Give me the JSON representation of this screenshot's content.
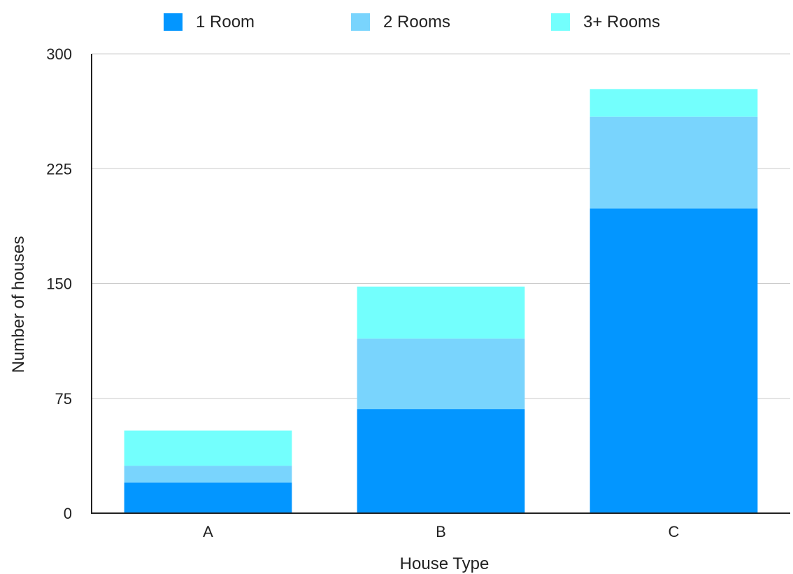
{
  "chart_data": {
    "type": "bar",
    "stacked": true,
    "title": "",
    "xlabel": "House Type",
    "ylabel": "Number of houses",
    "categories": [
      "A",
      "B",
      "C"
    ],
    "series": [
      {
        "name": "1 Room",
        "color": "#0396ff",
        "values": [
          20,
          68,
          199
        ]
      },
      {
        "name": "2 Rooms",
        "color": "#79d4fd",
        "values": [
          11,
          46,
          60
        ]
      },
      {
        "name": "3+ Rooms",
        "color": "#73fffd",
        "values": [
          23,
          34,
          18
        ]
      }
    ],
    "ylim": [
      0,
      300
    ],
    "yticks": [
      0,
      75,
      150,
      225,
      300
    ],
    "grid": true,
    "legend_position": "top"
  }
}
